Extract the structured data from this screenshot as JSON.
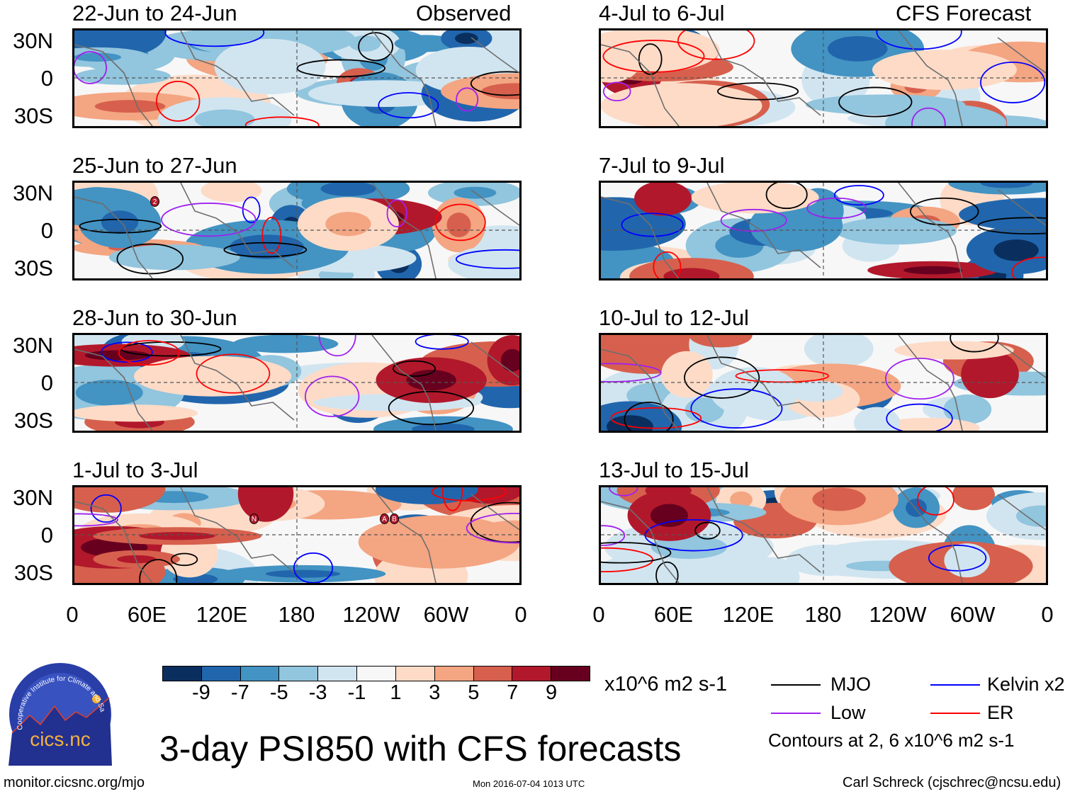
{
  "chart_data": {
    "type": "heatmap",
    "title": "3-day PSI850 with CFS forecasts",
    "column_headers": [
      "Observed",
      "CFS Forecast"
    ],
    "panels": [
      {
        "title": "22-Jun to 24-Jun",
        "group": "Observed",
        "markers": []
      },
      {
        "title": "25-Jun to 27-Jun",
        "group": "Observed",
        "markers": [
          "2"
        ]
      },
      {
        "title": "28-Jun to 30-Jun",
        "group": "Observed",
        "markers": []
      },
      {
        "title": "1-Jul to 3-Jul",
        "group": "Observed",
        "markers": [
          "N",
          "A",
          "B"
        ]
      },
      {
        "title": "4-Jul to 6-Jul",
        "group": "CFS Forecast",
        "markers": []
      },
      {
        "title": "7-Jul to 9-Jul",
        "group": "CFS Forecast",
        "markers": []
      },
      {
        "title": "10-Jul to 12-Jul",
        "group": "CFS Forecast",
        "markers": []
      },
      {
        "title": "13-Jul to 15-Jul",
        "group": "CFS Forecast",
        "markers": []
      }
    ],
    "lat_ticks": [
      "30N",
      "0",
      "30S"
    ],
    "lon_ticks": [
      "0",
      "60E",
      "120E",
      "180",
      "120W",
      "60W",
      "0"
    ],
    "colorbar": {
      "ticks": [
        "-9",
        "-7",
        "-5",
        "-3",
        "-1",
        "1",
        "3",
        "5",
        "7",
        "9"
      ],
      "colors": [
        "#0a2f5e",
        "#2166ac",
        "#4393c3",
        "#92c5de",
        "#d1e5f0",
        "#f7f7f7",
        "#fddbc7",
        "#f4a582",
        "#d6604d",
        "#b2182b",
        "#67001f"
      ],
      "units": "x10^6 m2 s-1"
    },
    "legend": [
      {
        "label": "MJO",
        "color": "#000000"
      },
      {
        "label": "Kelvin x2",
        "color": "#0000ff"
      },
      {
        "label": "Low",
        "color": "#a020f0"
      },
      {
        "label": "ER",
        "color": "#ff0000"
      }
    ],
    "contour_note": "Contours at 2, 6 x10^6 m2 s-1"
  },
  "logo": {
    "text": "cics.nc",
    "ring_text": "Cooperative Institute for Climate and Satellites"
  },
  "footer": {
    "url": "monitor.cicsnc.org/mjo",
    "timestamp": "Mon 2016-07-04 1013 UTC",
    "credit": "Carl Schreck (cjschrec@ncsu.edu)"
  }
}
